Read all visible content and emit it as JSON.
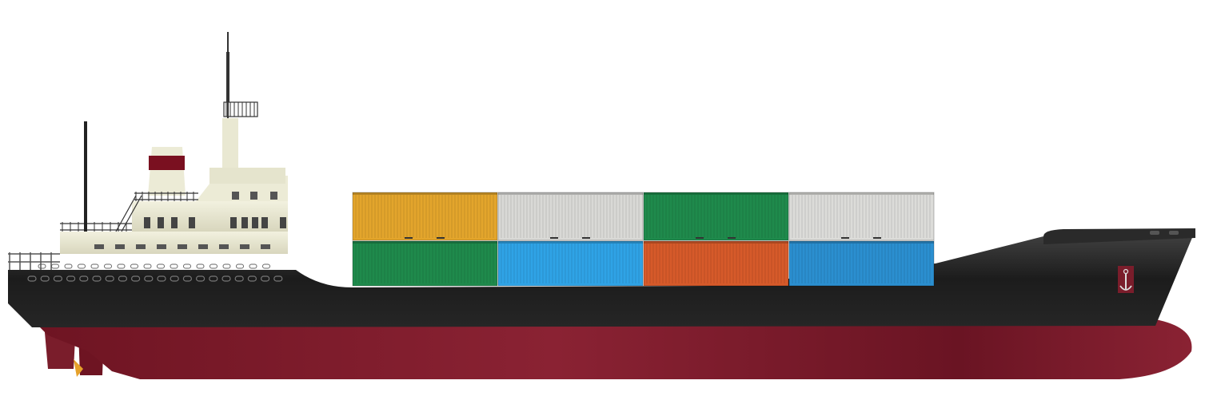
{
  "scene": {
    "subject": "container-ship",
    "colors": {
      "background": "#ffffff",
      "hull_upper": "#1e1e1e",
      "hull_lower": "#7a1d2b",
      "superstructure": "#ecebd6",
      "funnel_band": "#7a1020",
      "rail": "#4a4a4a"
    },
    "containers": [
      {
        "tier": "top",
        "color": "#e3a52c"
      },
      {
        "tier": "top",
        "color": "#d9d9d6"
      },
      {
        "tier": "top",
        "color": "#1f8a4c"
      },
      {
        "tier": "top",
        "color": "#dcdcd9"
      },
      {
        "tier": "bottom",
        "color": "#1f8a4c"
      },
      {
        "tier": "bottom",
        "color": "#2fa3e6"
      },
      {
        "tier": "bottom",
        "color": "#d65a2a"
      },
      {
        "tier": "bottom",
        "color": "#2b8fd0"
      }
    ]
  }
}
